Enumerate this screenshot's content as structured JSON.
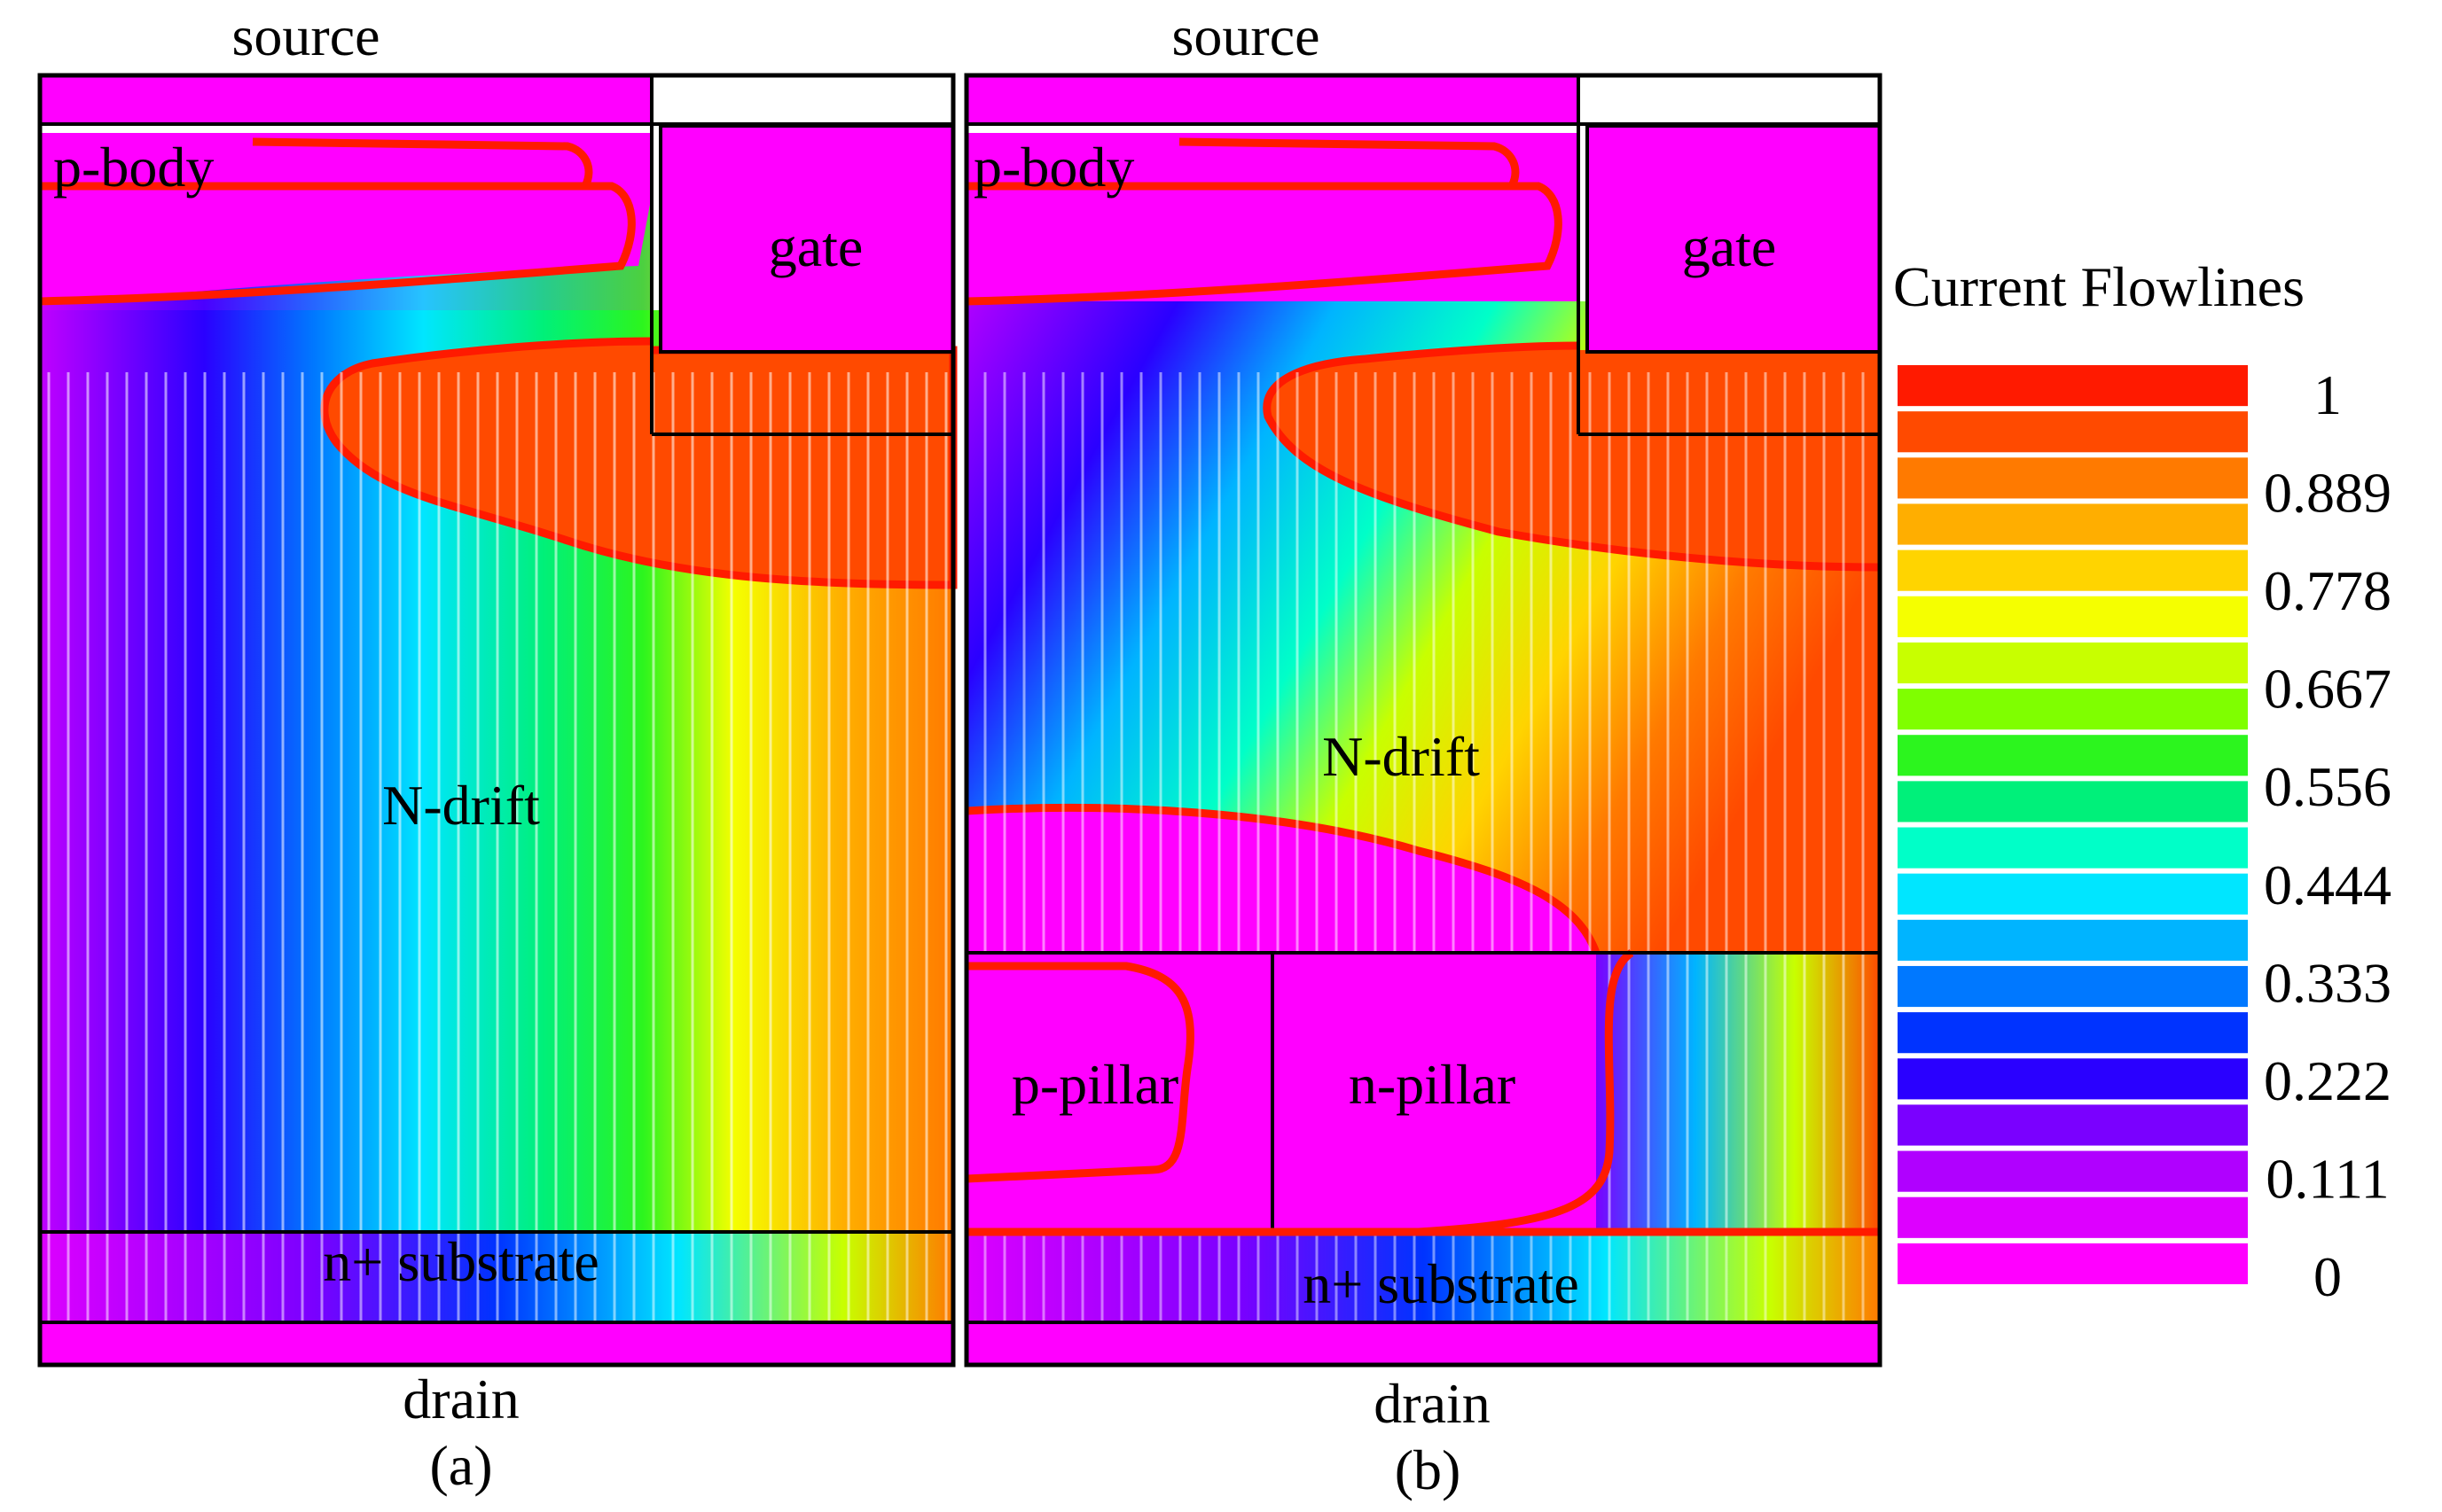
{
  "panel_a": {
    "source": "source",
    "p_body": "p-body",
    "gate": "gate",
    "n_drift": "N-drift",
    "n_substrate": "n+ substrate",
    "drain": "drain",
    "caption": "(a)"
  },
  "panel_b": {
    "source": "source",
    "p_body": "p-body",
    "gate": "gate",
    "n_drift": "N-drift",
    "p_pillar": "p-pillar",
    "n_pillar": "n-pillar",
    "n_substrate": "n+ substrate",
    "drain": "drain",
    "caption": "(b)"
  },
  "legend": {
    "title": "Current Flowlines",
    "ticks": [
      "1",
      "0.889",
      "0.778",
      "0.667",
      "0.556",
      "0.444",
      "0.333",
      "0.222",
      "0.111",
      "0"
    ],
    "colors": [
      "#ff1a00",
      "#ff4a00",
      "#ff7a00",
      "#ffae00",
      "#ffd400",
      "#f5ff00",
      "#c8ff00",
      "#7fff00",
      "#2cf51e",
      "#00f07a",
      "#00ffc8",
      "#00e6ff",
      "#00b4ff",
      "#0078ff",
      "#0033ff",
      "#2a00ff",
      "#7a00ff",
      "#b000ff",
      "#dd00ff",
      "#ff00ff"
    ]
  }
}
